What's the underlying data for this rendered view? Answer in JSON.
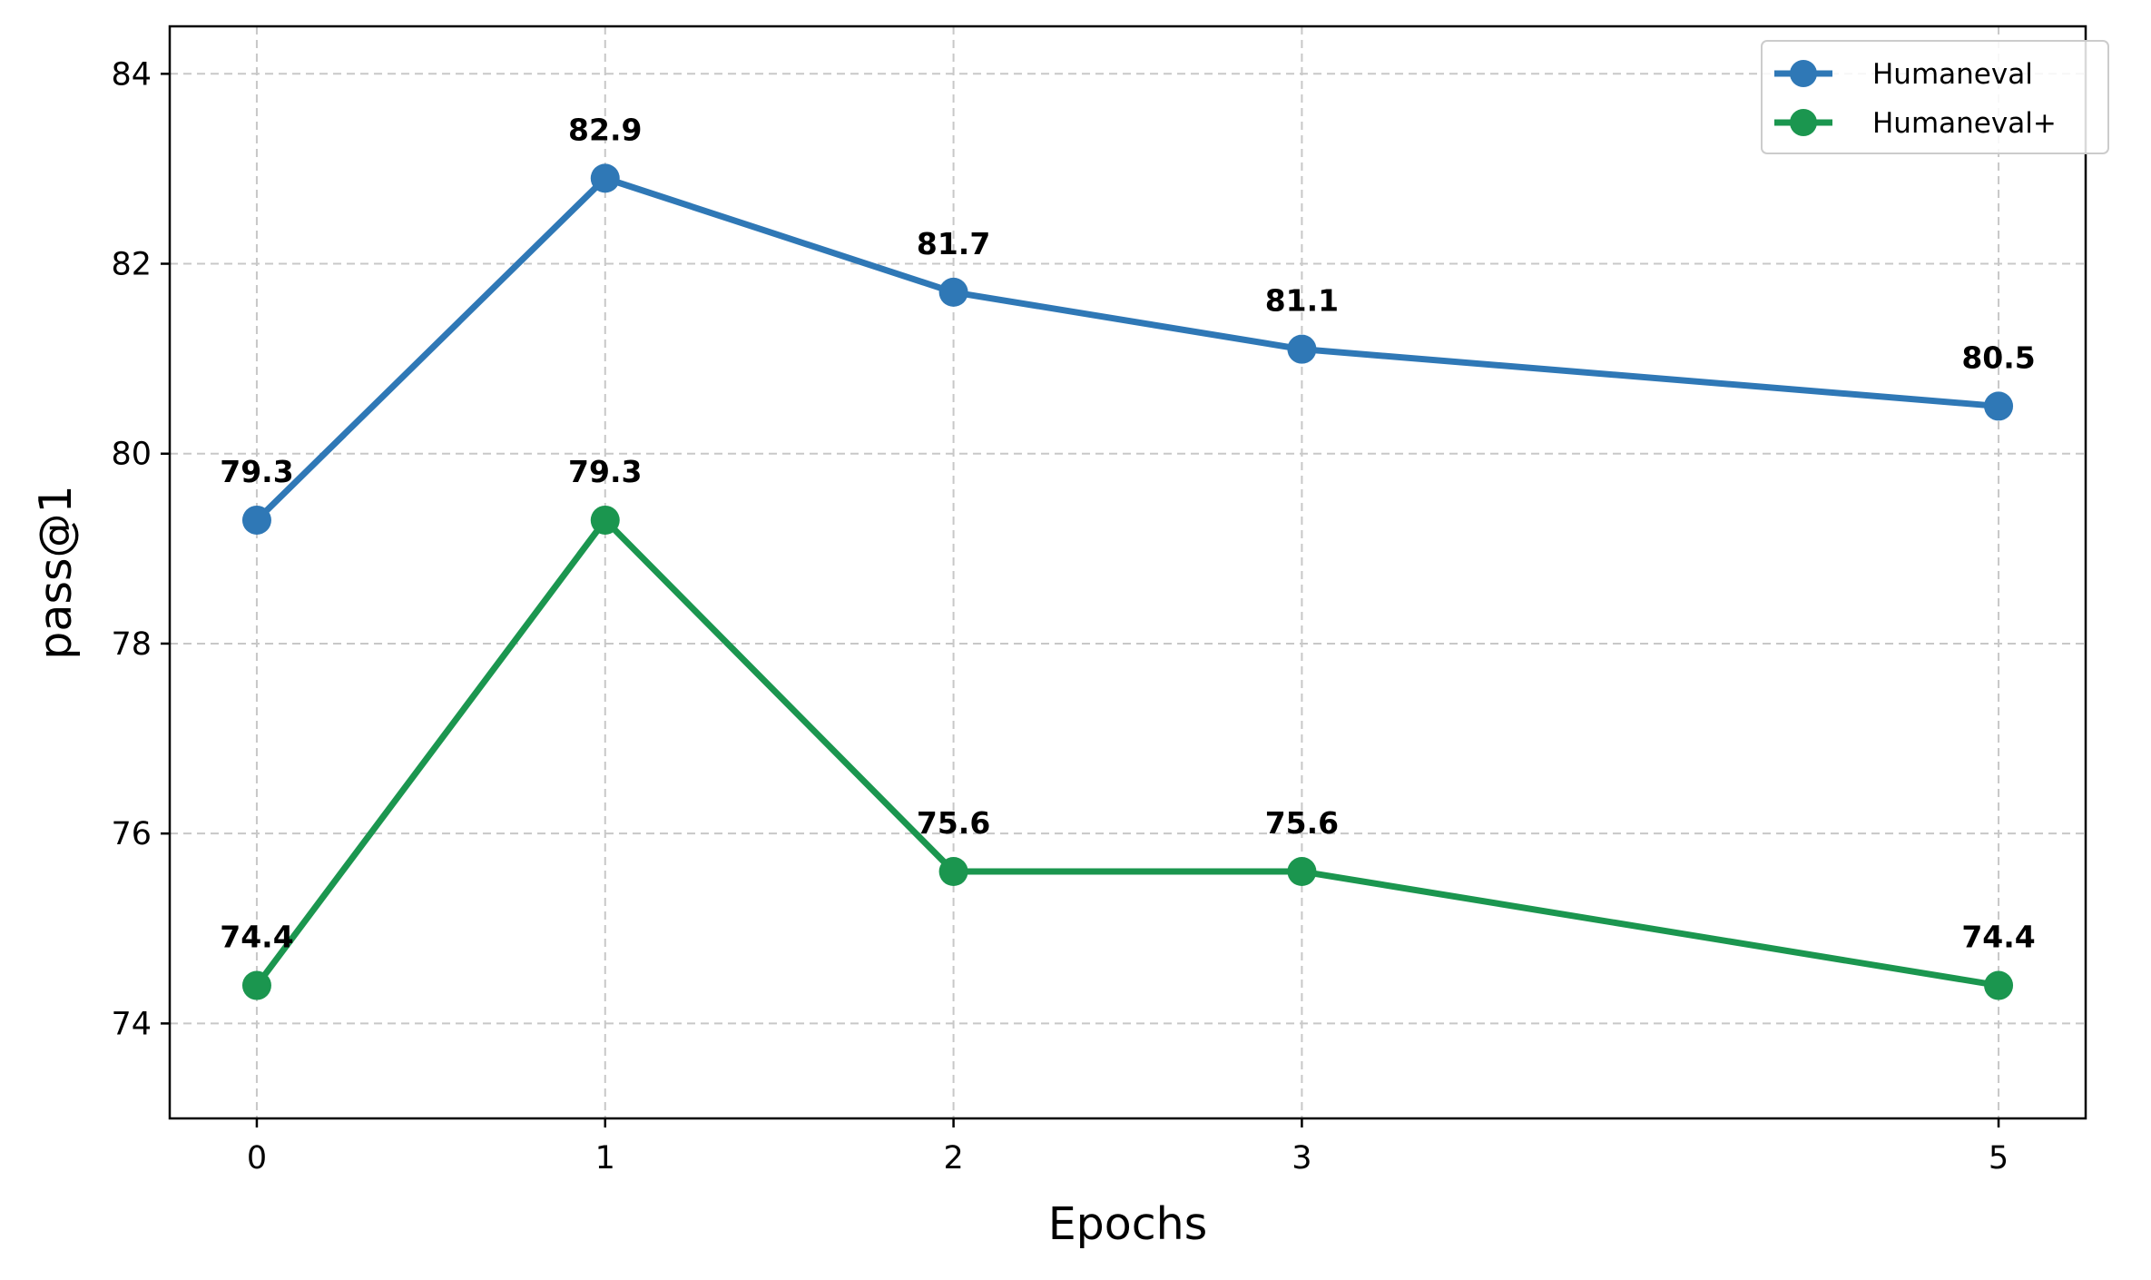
{
  "chart_data": {
    "type": "line",
    "title": "",
    "xlabel": "Epochs",
    "ylabel": "pass@1",
    "x": [
      0,
      1,
      2,
      3,
      5
    ],
    "x_tick_labels": [
      "0",
      "1",
      "2",
      "3",
      "5"
    ],
    "y_ticks": [
      74,
      76,
      78,
      80,
      82,
      84
    ],
    "y_tick_labels": [
      "74",
      "76",
      "78",
      "80",
      "82",
      "84"
    ],
    "xlim": [
      -0.25,
      5.25
    ],
    "ylim": [
      73.0,
      84.5
    ],
    "grid": true,
    "legend_position": "top-right",
    "series": [
      {
        "name": "Humaneval",
        "color": "#2f78b6",
        "values": [
          79.3,
          82.9,
          81.7,
          81.1,
          80.5
        ],
        "labels": [
          "79.3",
          "82.9",
          "81.7",
          "81.1",
          "80.5"
        ]
      },
      {
        "name": "Humaneval+",
        "color": "#1b964f",
        "values": [
          74.4,
          79.3,
          75.6,
          75.6,
          74.4
        ],
        "labels": [
          "74.4",
          "79.3",
          "75.6",
          "75.6",
          "74.4"
        ]
      }
    ]
  }
}
